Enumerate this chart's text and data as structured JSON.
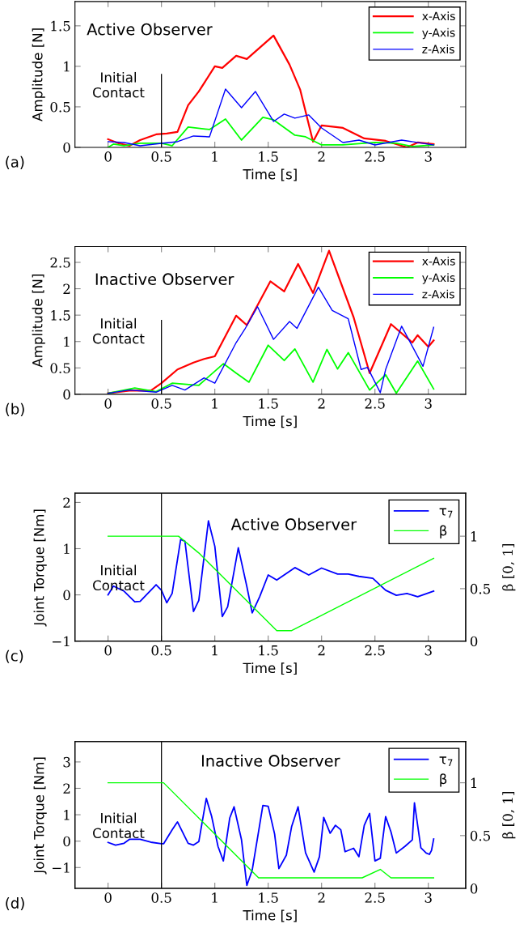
{
  "chart_data": [
    {
      "type": "line",
      "title": "Active Observer",
      "xlabel": "Time [s]",
      "ylabel": "Amplitude [N]",
      "xlim": [
        -0.31,
        3.35
      ],
      "xticks": [
        0,
        0.5,
        1,
        1.5,
        2,
        2.5,
        3
      ],
      "ylim": [
        0,
        1.8
      ],
      "yticks": [
        0,
        0.5,
        1,
        1.5
      ],
      "legend": "top right",
      "grid": false,
      "annotations": [
        "(a)"
      ],
      "ref_lines": [
        {
          "axis": "x",
          "value": 0.5,
          "label": "Initial Contact",
          "color": "#000000"
        }
      ],
      "series": [
        {
          "name": "x-Axis",
          "color": "#ff0000",
          "x": [
            0,
            0.1,
            0.2,
            0.3,
            0.45,
            0.55,
            0.65,
            0.75,
            0.85,
            1.0,
            1.07,
            1.2,
            1.3,
            1.55,
            1.7,
            1.8,
            1.92,
            2.0,
            2.2,
            2.4,
            2.6,
            2.8,
            2.9,
            3.05
          ],
          "values": [
            0.1,
            0.05,
            0.02,
            0.09,
            0.16,
            0.17,
            0.19,
            0.52,
            0.69,
            1.0,
            0.98,
            1.13,
            1.09,
            1.38,
            1.02,
            0.71,
            0.07,
            0.27,
            0.24,
            0.11,
            0.08,
            0.0,
            0.06,
            0.04
          ]
        },
        {
          "name": "y-Axis",
          "color": "#00ff00",
          "x": [
            0,
            0.05,
            0.15,
            0.3,
            0.5,
            0.6,
            0.75,
            0.95,
            1.1,
            1.25,
            1.45,
            1.55,
            1.75,
            1.85,
            2.0,
            2.2,
            2.5,
            2.7,
            2.85,
            3.05
          ],
          "values": [
            0.0,
            0.04,
            0.02,
            0.05,
            0.05,
            0.02,
            0.25,
            0.22,
            0.35,
            0.09,
            0.37,
            0.34,
            0.15,
            0.13,
            0.03,
            0.03,
            0.06,
            0.05,
            0.01,
            0.03
          ]
        },
        {
          "name": "z-Axis",
          "color": "#0000ff",
          "x": [
            0,
            0.15,
            0.3,
            0.5,
            0.65,
            0.8,
            0.95,
            1.1,
            1.25,
            1.38,
            1.55,
            1.65,
            1.75,
            1.88,
            2.0,
            2.2,
            2.35,
            2.5,
            2.75,
            3.05
          ],
          "values": [
            0.07,
            0.06,
            0.02,
            0.05,
            0.07,
            0.14,
            0.13,
            0.72,
            0.49,
            0.69,
            0.32,
            0.41,
            0.36,
            0.4,
            0.24,
            0.06,
            0.09,
            0.03,
            0.09,
            0.03
          ]
        }
      ]
    },
    {
      "type": "line",
      "title": "Inactive Observer",
      "xlabel": "Time [s]",
      "ylabel": "Amplitude [N]",
      "xlim": [
        -0.31,
        3.35
      ],
      "xticks": [
        0,
        0.5,
        1,
        1.5,
        2,
        2.5,
        3
      ],
      "ylim": [
        0,
        2.8
      ],
      "yticks": [
        0,
        0.5,
        1,
        1.5,
        2,
        2.5
      ],
      "legend": "top right",
      "grid": false,
      "annotations": [
        "(b)"
      ],
      "ref_lines": [
        {
          "axis": "x",
          "value": 0.5,
          "label": "Initial Contact",
          "color": "#000000"
        }
      ],
      "series": [
        {
          "name": "x-Axis",
          "color": "#ff0000",
          "x": [
            0,
            0.2,
            0.4,
            0.5,
            0.65,
            0.8,
            0.9,
            1.0,
            1.2,
            1.3,
            1.52,
            1.65,
            1.78,
            1.92,
            2.07,
            2.3,
            2.45,
            2.65,
            2.85,
            2.9,
            3.0,
            3.05
          ],
          "values": [
            0.02,
            0.07,
            0.07,
            0.21,
            0.47,
            0.6,
            0.67,
            0.72,
            1.49,
            1.31,
            2.14,
            1.95,
            2.47,
            1.92,
            2.72,
            1.46,
            0.4,
            1.33,
            0.98,
            1.12,
            0.9,
            1.02
          ]
        },
        {
          "name": "y-Axis",
          "color": "#00ff00",
          "x": [
            0,
            0.25,
            0.45,
            0.6,
            0.85,
            1.08,
            1.2,
            1.32,
            1.5,
            1.65,
            1.75,
            1.92,
            2.05,
            2.15,
            2.25,
            2.45,
            2.6,
            2.7,
            2.9,
            3.05
          ],
          "values": [
            0.02,
            0.12,
            0.05,
            0.21,
            0.17,
            0.58,
            0.4,
            0.23,
            0.93,
            0.64,
            0.86,
            0.23,
            0.85,
            0.48,
            0.79,
            0.08,
            0.37,
            0.02,
            0.63,
            0.1
          ]
        },
        {
          "name": "z-Axis",
          "color": "#0000ff",
          "x": [
            0,
            0.2,
            0.45,
            0.6,
            0.72,
            0.9,
            1.0,
            1.2,
            1.28,
            1.4,
            1.55,
            1.7,
            1.77,
            1.97,
            2.1,
            2.25,
            2.37,
            2.43,
            2.55,
            2.6,
            2.75,
            2.95,
            3.05
          ],
          "values": [
            0.02,
            0.08,
            0.04,
            0.17,
            0.08,
            0.31,
            0.21,
            0.98,
            1.23,
            1.66,
            1.04,
            1.38,
            1.25,
            2.03,
            1.59,
            1.43,
            0.47,
            0.51,
            0.03,
            0.47,
            1.29,
            0.53,
            1.27
          ]
        }
      ]
    },
    {
      "type": "line",
      "title": "Active Observer",
      "xlabel": "Time [s]",
      "ylabel": "Joint Torque [Nm]",
      "y2label": "β [0, 1]",
      "xlim": [
        -0.31,
        3.35
      ],
      "xticks": [
        0,
        0.5,
        1,
        1.5,
        2,
        2.5,
        3
      ],
      "ylim": [
        -1,
        2.2
      ],
      "yticks": [
        {
          "value": -1,
          "label": "−1"
        },
        0,
        1,
        2
      ],
      "y2lim": [
        0,
        1.41
      ],
      "y2ticks": [
        0,
        0.5,
        1
      ],
      "legend": "top right",
      "grid": false,
      "annotations": [
        "(c)"
      ],
      "ref_lines": [
        {
          "axis": "x",
          "value": 0.5,
          "label": "Initial Contact",
          "color": "#000000"
        }
      ],
      "series": [
        {
          "name": "τ$_{7}$",
          "color": "#0000ff",
          "x": [
            0,
            0.05,
            0.15,
            0.25,
            0.3,
            0.45,
            0.5,
            0.55,
            0.6,
            0.68,
            0.72,
            0.8,
            0.85,
            0.94,
            1.0,
            1.07,
            1.12,
            1.22,
            1.3,
            1.35,
            1.42,
            1.5,
            1.58,
            1.75,
            1.88,
            2.0,
            2.15,
            2.25,
            2.35,
            2.48,
            2.6,
            2.7,
            2.8,
            2.9,
            3.05
          ],
          "values": [
            0.0,
            0.19,
            0.08,
            -0.15,
            -0.14,
            0.22,
            0.1,
            -0.17,
            0.03,
            1.2,
            1.16,
            -0.36,
            -0.12,
            1.6,
            1.05,
            -0.47,
            -0.26,
            1.02,
            0.18,
            -0.39,
            -0.04,
            0.43,
            0.32,
            0.59,
            0.43,
            0.58,
            0.45,
            0.45,
            0.4,
            0.36,
            0.1,
            -0.01,
            0.03,
            -0.04,
            0.08
          ]
        },
        {
          "name": "β",
          "color": "#00ff00",
          "axis": "y2",
          "x": [
            0,
            0.66,
            0.85,
            1.58,
            1.72,
            3.05
          ],
          "values": [
            1.0,
            1.0,
            0.84,
            0.1,
            0.1,
            0.79
          ]
        }
      ]
    },
    {
      "type": "line",
      "title": "Inactive Observer",
      "xlabel": "Time [s]",
      "ylabel": "Joint Torque [Nm]",
      "y2label": "β [0, 1]",
      "xlim": [
        -0.31,
        3.35
      ],
      "xticks": [
        0,
        0.5,
        1,
        1.5,
        2,
        2.5,
        3
      ],
      "ylim": [
        -1.79,
        3.77
      ],
      "yticks": [
        {
          "value": -1,
          "label": "−1"
        },
        0,
        1,
        2,
        3
      ],
      "y2lim": [
        0,
        1.39
      ],
      "y2ticks": [
        0,
        0.5,
        1
      ],
      "legend": "top right",
      "grid": false,
      "annotations": [
        "(d)"
      ],
      "ref_lines": [
        {
          "axis": "x",
          "value": 0.5,
          "label": "Initial Contact",
          "color": "#000000"
        }
      ],
      "series": [
        {
          "name": "τ$_{7}$",
          "color": "#0000ff",
          "x": [
            0,
            0.07,
            0.15,
            0.2,
            0.3,
            0.4,
            0.5,
            0.52,
            0.6,
            0.65,
            0.75,
            0.8,
            0.85,
            0.92,
            0.97,
            1.03,
            1.08,
            1.14,
            1.18,
            1.25,
            1.3,
            1.35,
            1.45,
            1.5,
            1.56,
            1.6,
            1.67,
            1.72,
            1.78,
            1.85,
            1.93,
            1.98,
            2.02,
            2.08,
            2.13,
            2.18,
            2.22,
            2.3,
            2.35,
            2.4,
            2.45,
            2.5,
            2.55,
            2.6,
            2.65,
            2.7,
            2.78,
            2.85,
            2.87,
            2.93,
            2.98,
            3.01,
            3.03,
            3.05
          ],
          "values": [
            -0.05,
            -0.15,
            -0.08,
            0.07,
            0.07,
            -0.04,
            -0.1,
            -0.1,
            0.43,
            0.73,
            -0.08,
            -0.15,
            -0.02,
            1.62,
            0.94,
            -0.2,
            -0.75,
            0.88,
            1.3,
            0.05,
            -1.68,
            -1.1,
            1.35,
            1.32,
            0.27,
            -1.04,
            -0.53,
            0.56,
            1.3,
            -0.44,
            -1.17,
            -0.59,
            0.9,
            0.3,
            0.6,
            0.43,
            -0.4,
            -0.27,
            -0.59,
            0.6,
            1.05,
            -0.75,
            -0.65,
            0.93,
            0.35,
            -0.45,
            -0.2,
            0.05,
            1.45,
            -0.25,
            -0.45,
            -0.5,
            -0.35,
            0.08
          ]
        },
        {
          "name": "β",
          "color": "#00ff00",
          "axis": "y2",
          "x": [
            0,
            0.52,
            1.41,
            2.38,
            2.55,
            2.65,
            3.05
          ],
          "values": [
            1.0,
            1.0,
            0.1,
            0.1,
            0.18,
            0.1,
            0.1
          ]
        }
      ]
    }
  ]
}
